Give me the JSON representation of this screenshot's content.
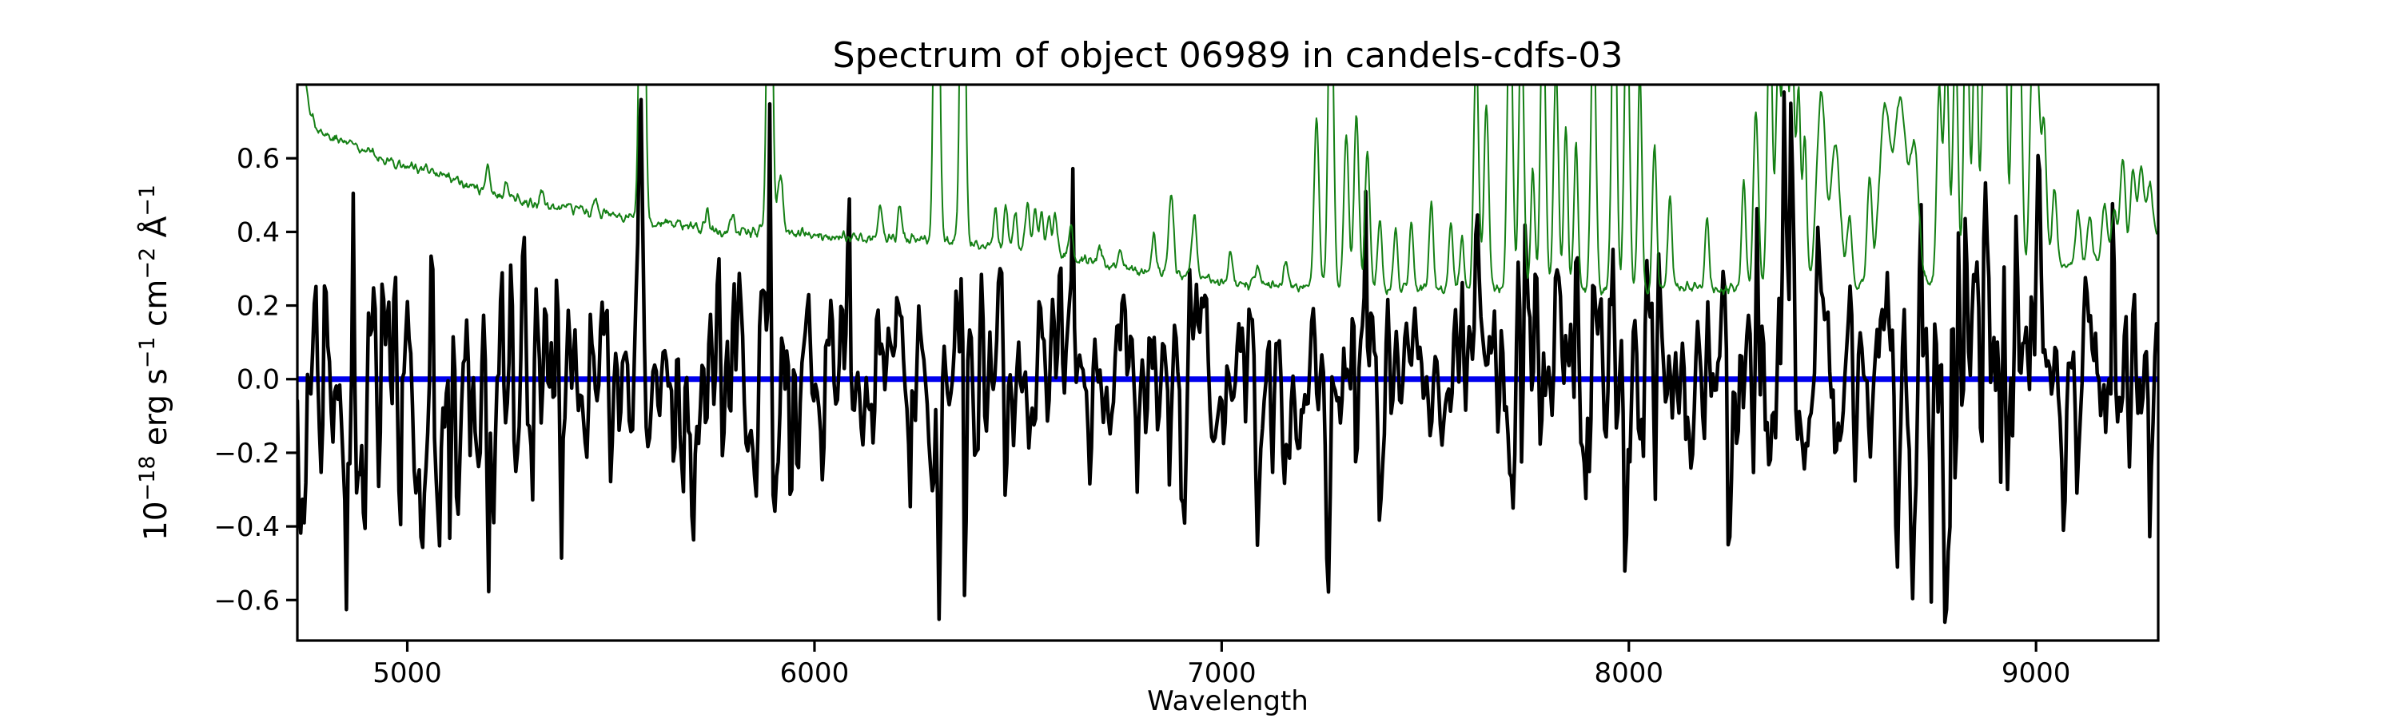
{
  "figure": {
    "background": "#ffffff",
    "axis_color": "#000000"
  },
  "chart_data": {
    "type": "line",
    "title": "Spectrum of object 06989 in candels-cdfs-03",
    "xlabel": "Wavelength",
    "ylabel": "10^-18 erg s^-1 cm^-2 A^-1",
    "ylabel_parts": [
      {
        "text": "10"
      },
      {
        "text": "−18",
        "sup": true
      },
      {
        "text": " erg s"
      },
      {
        "text": "−1",
        "sup": true
      },
      {
        "text": " cm"
      },
      {
        "text": "−2",
        "sup": true
      },
      {
        "text": " Å"
      },
      {
        "text": "−1",
        "sup": true
      }
    ],
    "xlim": [
      4730,
      9300
    ],
    "ylim": [
      -0.71,
      0.8
    ],
    "xticks": [
      {
        "v": 5000,
        "label": "5000"
      },
      {
        "v": 6000,
        "label": "6000"
      },
      {
        "v": 7000,
        "label": "7000"
      },
      {
        "v": 8000,
        "label": "8000"
      },
      {
        "v": 9000,
        "label": "9000"
      }
    ],
    "yticks": [
      {
        "v": 0.6,
        "label": "0.6"
      },
      {
        "v": 0.4,
        "label": "0.4"
      },
      {
        "v": 0.2,
        "label": "0.2"
      },
      {
        "v": 0.0,
        "label": "0.0"
      },
      {
        "v": -0.2,
        "label": "−0.2"
      },
      {
        "v": -0.4,
        "label": "−0.4"
      },
      {
        "v": -0.6,
        "label": "−0.6"
      }
    ],
    "grid": false,
    "legend": "none",
    "series": [
      {
        "name": "model zero line",
        "role": "model",
        "color": "#0000ee",
        "linewidth": 7,
        "generator": {
          "kind": "constant",
          "value": 0.0
        }
      },
      {
        "name": "observed flux",
        "role": "flux",
        "color": "#000000",
        "linewidth": 4.5,
        "description": "noisy object spectrum fluctuating about zero, excursions to about +/-0.65, noisier near bright sky lines and blue end",
        "generator": {
          "kind": "correlated-noise",
          "seed": 1337,
          "n_points": 1100,
          "base_sigma": 0.14,
          "skyline_boost": 0.2,
          "skyline_cap": 1.0,
          "left_edge_boost": 0.1,
          "left_edge_scale": 400,
          "spike_prob": 0.06,
          "spike_gain": 2.0
        }
      },
      {
        "name": "noise (sky) spectrum",
        "role": "sky",
        "color": "#158015",
        "linewidth": 2,
        "description": "smooth declining noise continuum from ~0.8 at 4730A to ~0.24 at 7600-8000A, rising to ~0.39 at 9300A, with OH/airglow emission spikes (5577, 5890, 6300, 6364 and dense red forests), tall lines clipped at plot top",
        "generator": {
          "kind": "continuum-plus-lines",
          "seed": 77,
          "n_points": 2300,
          "wiggle_sigma": 0.007,
          "continuum": [
            [
              4730,
              1.05
            ],
            [
              4745,
              0.84
            ],
            [
              4758,
              0.75
            ],
            [
              4772,
              0.7
            ],
            [
              4790,
              0.67
            ],
            [
              4830,
              0.65
            ],
            [
              4870,
              0.64
            ],
            [
              4915,
              0.615
            ],
            [
              4960,
              0.59
            ],
            [
              5000,
              0.578
            ],
            [
              5060,
              0.562
            ],
            [
              5120,
              0.545
            ],
            [
              5180,
              0.51
            ],
            [
              5240,
              0.49
            ],
            [
              5300,
              0.478
            ],
            [
              5360,
              0.466
            ],
            [
              5420,
              0.458
            ],
            [
              5480,
              0.45
            ],
            [
              5540,
              0.443
            ],
            [
              5600,
              0.428
            ],
            [
              5660,
              0.418
            ],
            [
              5720,
              0.41
            ],
            [
              5780,
              0.402
            ],
            [
              5840,
              0.398
            ],
            [
              5900,
              0.402
            ],
            [
              5960,
              0.393
            ],
            [
              6020,
              0.389
            ],
            [
              6090,
              0.386
            ],
            [
              6160,
              0.384
            ],
            [
              6230,
              0.378
            ],
            [
              6300,
              0.372
            ],
            [
              6370,
              0.366
            ],
            [
              6440,
              0.357
            ],
            [
              6510,
              0.347
            ],
            [
              6580,
              0.337
            ],
            [
              6650,
              0.324
            ],
            [
              6720,
              0.31
            ],
            [
              6790,
              0.297
            ],
            [
              6860,
              0.285
            ],
            [
              6930,
              0.275
            ],
            [
              7000,
              0.265
            ],
            [
              7080,
              0.257
            ],
            [
              7160,
              0.252
            ],
            [
              7250,
              0.248
            ],
            [
              7350,
              0.245
            ],
            [
              7450,
              0.243
            ],
            [
              7560,
              0.241
            ],
            [
              7680,
              0.24
            ],
            [
              7800,
              0.24
            ],
            [
              7920,
              0.241
            ],
            [
              8040,
              0.243
            ],
            [
              8160,
              0.246
            ],
            [
              8280,
              0.249
            ],
            [
              8400,
              0.253
            ],
            [
              8520,
              0.257
            ],
            [
              8640,
              0.262
            ],
            [
              8760,
              0.268
            ],
            [
              8880,
              0.276
            ],
            [
              9000,
              0.29
            ],
            [
              9060,
              0.3
            ],
            [
              9120,
              0.312
            ],
            [
              9180,
              0.33
            ],
            [
              9240,
              0.355
            ],
            [
              9300,
              0.39
            ]
          ],
          "lines": [
            [
              5199,
              0.08,
              5
            ],
            [
              5243,
              0.05,
              5
            ],
            [
              5330,
              0.04,
              5
            ],
            [
              5461,
              0.05,
              5
            ],
            [
              5577,
              1.5,
              6
            ],
            [
              5736,
              0.05,
              5
            ],
            [
              5798,
              0.05,
              5
            ],
            [
              5890,
              1.3,
              6
            ],
            [
              5916,
              0.16,
              6
            ],
            [
              6161,
              0.09,
              5
            ],
            [
              6210,
              0.09,
              5
            ],
            [
              6300,
              1.45,
              6
            ],
            [
              6364,
              1.2,
              6
            ],
            [
              6444,
              0.11,
              5
            ],
            [
              6470,
              0.12,
              5
            ],
            [
              6493,
              0.11,
              5
            ],
            [
              6523,
              0.14,
              5
            ],
            [
              6542,
              0.12,
              5
            ],
            [
              6558,
              0.11,
              5
            ],
            [
              6576,
              0.1,
              5
            ],
            [
              6591,
              0.1,
              5
            ],
            [
              6630,
              0.08,
              5
            ],
            [
              6700,
              0.05,
              5
            ],
            [
              6750,
              0.05,
              5
            ],
            [
              6834,
              0.1,
              5
            ],
            [
              6876,
              0.22,
              6
            ],
            [
              6933,
              0.17,
              6
            ],
            [
              7021,
              0.09,
              5
            ],
            [
              7090,
              0.05,
              5
            ],
            [
              7157,
              0.07,
              5
            ],
            [
              7233,
              0.47,
              6
            ],
            [
              7268,
              1.0,
              6
            ],
            [
              7306,
              0.42,
              6
            ],
            [
              7331,
              0.48,
              6
            ],
            [
              7358,
              0.38,
              6
            ],
            [
              7388,
              0.2,
              5
            ],
            [
              7427,
              0.16,
              5
            ],
            [
              7466,
              0.18,
              5
            ],
            [
              7515,
              0.24,
              5
            ],
            [
              7563,
              0.18,
              5
            ],
            [
              7590,
              0.14,
              5
            ],
            [
              7625,
              0.66,
              6
            ],
            [
              7650,
              0.5,
              6
            ],
            [
              7708,
              0.9,
              6
            ],
            [
              7736,
              0.75,
              6
            ],
            [
              7764,
              0.32,
              5
            ],
            [
              7789,
              0.82,
              6
            ],
            [
              7821,
              0.6,
              6
            ],
            [
              7845,
              0.45,
              5
            ],
            [
              7870,
              0.4,
              5
            ],
            [
              7913,
              0.78,
              6
            ],
            [
              7964,
              0.95,
              6
            ],
            [
              7995,
              0.85,
              6
            ],
            [
              8027,
              0.6,
              5
            ],
            [
              8063,
              0.4,
              5
            ],
            [
              8101,
              0.25,
              5
            ],
            [
              8192,
              0.18,
              5
            ],
            [
              8282,
              0.3,
              5
            ],
            [
              8312,
              0.48,
              6
            ],
            [
              8346,
              0.78,
              6
            ],
            [
              8367,
              0.62,
              6
            ],
            [
              8384,
              0.82,
              6
            ],
            [
              8401,
              0.66,
              6
            ],
            [
              8417,
              0.52,
              5
            ],
            [
              8432,
              0.4,
              5
            ],
            [
              8472,
              0.52,
              11
            ],
            [
              8508,
              0.38,
              11
            ],
            [
              8542,
              0.18,
              6
            ],
            [
              8591,
              0.28,
              6
            ],
            [
              8628,
              0.46,
              13
            ],
            [
              8667,
              0.5,
              15
            ],
            [
              8702,
              0.34,
              10
            ],
            [
              8762,
              0.52,
              6
            ],
            [
              8780,
              0.62,
              6
            ],
            [
              8802,
              0.66,
              6
            ],
            [
              8829,
              0.88,
              6
            ],
            [
              8851,
              0.76,
              6
            ],
            [
              8872,
              0.64,
              6
            ],
            [
              8888,
              0.82,
              6
            ],
            [
              8905,
              0.7,
              6
            ],
            [
              8922,
              0.86,
              6
            ],
            [
              8945,
              0.76,
              6
            ],
            [
              8960,
              0.64,
              6
            ],
            [
              8990,
              0.54,
              6
            ],
            [
              9004,
              0.5,
              6
            ],
            [
              9020,
              0.4,
              6
            ],
            [
              9045,
              0.22,
              6
            ],
            [
              9103,
              0.15,
              6
            ],
            [
              9132,
              0.12,
              6
            ],
            [
              9168,
              0.15,
              6
            ],
            [
              9192,
              0.13,
              6
            ],
            [
              9213,
              0.26,
              6
            ],
            [
              9238,
              0.2,
              6
            ],
            [
              9258,
              0.22,
              7
            ],
            [
              9280,
              0.15,
              7
            ]
          ]
        }
      }
    ]
  }
}
